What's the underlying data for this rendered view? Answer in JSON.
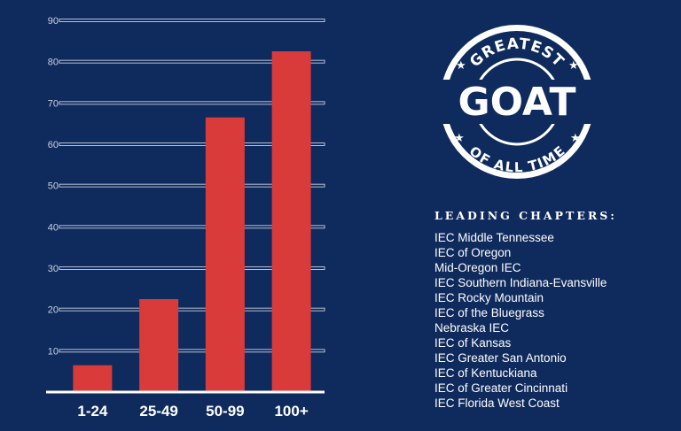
{
  "chart_data": {
    "type": "bar",
    "categories": [
      "1-24",
      "25-49",
      "50-99",
      "100+"
    ],
    "values": [
      6.5,
      22.5,
      66.5,
      82.5
    ],
    "yticks": [
      10,
      20,
      30,
      40,
      50,
      60,
      70,
      80,
      90
    ],
    "ylim": [
      0,
      90
    ],
    "grid": true,
    "title": "",
    "xlabel": "",
    "ylabel": "",
    "colors": {
      "bar": "#d93a3a",
      "background": "#0f2a5c",
      "grid": "#c9d2e3"
    }
  },
  "badge": {
    "top_text": "GREATEST",
    "main_text": "GOAT",
    "bottom_text": "OF ALL TIME"
  },
  "chapters": {
    "heading": "LEADING CHAPTERS:",
    "items": [
      "IEC Middle Tennessee",
      "IEC of Oregon",
      "Mid-Oregon IEC",
      "IEC Southern Indiana-Evansville",
      "IEC Rocky Mountain",
      "IEC of the Bluegrass",
      "Nebraska IEC",
      "IEC of Kansas",
      "IEC Greater San Antonio",
      "IEC of Kentuckiana",
      "IEC of Greater Cincinnati",
      "IEC Florida West Coast"
    ]
  }
}
